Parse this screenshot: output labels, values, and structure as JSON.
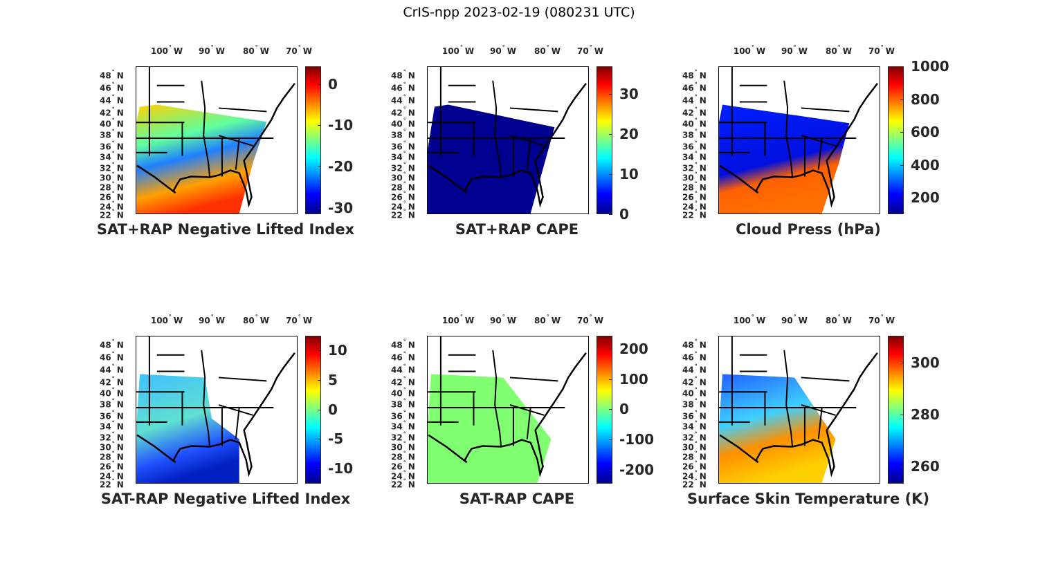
{
  "figure_title": "CrIS-npp 2023-02-19 (080231 UTC)",
  "axes": {
    "lon_labels": [
      "100",
      "90",
      "80",
      "70"
    ],
    "lon_suffix": "W",
    "lat_labels": [
      "48",
      "46",
      "44",
      "42",
      "40",
      "38",
      "36",
      "34",
      "32",
      "30",
      "28",
      "26",
      "24",
      "22"
    ],
    "lat_suffix": "N",
    "degree_symbol": "°"
  },
  "chart_data": [
    {
      "type": "heatmap",
      "title": "SAT+RAP Negative Lifted Index",
      "colormap": "jet",
      "clim": [
        -31.5,
        4.3
      ],
      "colorbar_ticks": [
        "0",
        "-10",
        "-20",
        "-30"
      ],
      "tick_values": [
        0,
        -10,
        -20,
        -30
      ]
    },
    {
      "type": "heatmap",
      "title": "SAT+RAP CAPE",
      "colormap": "jet",
      "clim": [
        0,
        36.9
      ],
      "colorbar_ticks": [
        "30",
        "20",
        "10",
        "0"
      ],
      "tick_values": [
        30,
        20,
        10,
        0
      ]
    },
    {
      "type": "heatmap",
      "title": "Cloud Press (hPa)",
      "colormap": "jet",
      "clim": [
        99,
        1000
      ],
      "colorbar_ticks": [
        "1000",
        "800",
        "600",
        "400",
        "200"
      ],
      "tick_values": [
        1000,
        800,
        600,
        400,
        200
      ]
    },
    {
      "type": "heatmap",
      "title": "SAT-RAP Negative Lifted Index",
      "colormap": "jet",
      "clim": [
        -12.6,
        12.5
      ],
      "colorbar_ticks": [
        "10",
        "5",
        "0",
        "-5",
        "-10"
      ],
      "tick_values": [
        10,
        5,
        0,
        -5,
        -10
      ]
    },
    {
      "type": "heatmap",
      "title": "SAT-RAP CAPE",
      "colormap": "jet",
      "clim": [
        -246,
        243
      ],
      "colorbar_ticks": [
        "200",
        "100",
        "0",
        "-100",
        "-200"
      ],
      "tick_values": [
        200,
        100,
        0,
        -100,
        -200
      ]
    },
    {
      "type": "heatmap",
      "title": "Surface Skin Temperature (K)",
      "colormap": "jet",
      "clim": [
        253.3,
        310.4
      ],
      "colorbar_ticks": [
        "300",
        "280",
        "260"
      ],
      "tick_values": [
        300,
        280,
        260
      ]
    }
  ],
  "colors": {
    "jet_top": "#800000",
    "jet_bottom": "#00008f",
    "text": "#262626"
  }
}
